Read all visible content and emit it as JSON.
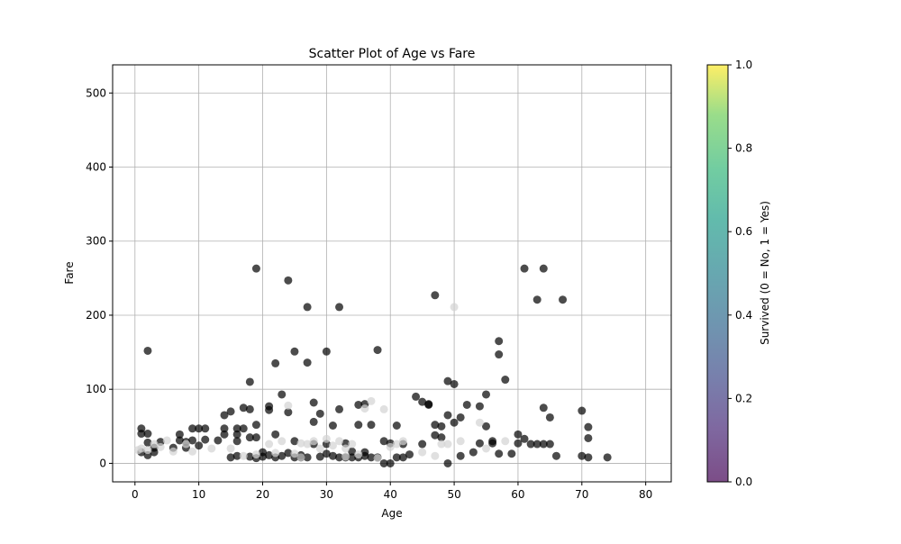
{
  "chart_data": {
    "type": "scatter",
    "title": "Scatter Plot of Age vs Fare",
    "xlabel": "Age",
    "ylabel": "Fare",
    "xlim": [
      -3.5,
      84
    ],
    "ylim": [
      -25,
      538
    ],
    "xticks": [
      0,
      10,
      20,
      30,
      40,
      50,
      60,
      70,
      80
    ],
    "yticks": [
      0,
      100,
      200,
      300,
      400,
      500
    ],
    "grid": true,
    "colorbar": {
      "label": "Survived (0 = No, 1 = Yes)",
      "range": [
        0,
        1
      ],
      "ticks": [
        "0.0",
        "0.2",
        "0.4",
        "0.6",
        "0.8",
        "1.0"
      ],
      "colormap": "viridis"
    },
    "series": [
      {
        "survived": 0,
        "color": "#000000",
        "points": [
          [
            1,
            47
          ],
          [
            1,
            40
          ],
          [
            1,
            15
          ],
          [
            2,
            152
          ],
          [
            2,
            40
          ],
          [
            2,
            28
          ],
          [
            2,
            11
          ],
          [
            3,
            21
          ],
          [
            3,
            15
          ],
          [
            4,
            29
          ],
          [
            6,
            21
          ],
          [
            7,
            31
          ],
          [
            7,
            39
          ],
          [
            8,
            21
          ],
          [
            8,
            29
          ],
          [
            9,
            47
          ],
          [
            9,
            31
          ],
          [
            10,
            47
          ],
          [
            10,
            24
          ],
          [
            11,
            47
          ],
          [
            11,
            32
          ],
          [
            13,
            31
          ],
          [
            14,
            65
          ],
          [
            14,
            47
          ],
          [
            14,
            39
          ],
          [
            15,
            70
          ],
          [
            15,
            8
          ],
          [
            16,
            47
          ],
          [
            16,
            39
          ],
          [
            16,
            30
          ],
          [
            16,
            10
          ],
          [
            17,
            75
          ],
          [
            17,
            47
          ],
          [
            18,
            110
          ],
          [
            18,
            73
          ],
          [
            18,
            35
          ],
          [
            18,
            9
          ],
          [
            19,
            263
          ],
          [
            19,
            52
          ],
          [
            19,
            35
          ],
          [
            19,
            7
          ],
          [
            20,
            15
          ],
          [
            20,
            9
          ],
          [
            21,
            77
          ],
          [
            21,
            72
          ],
          [
            21,
            11
          ],
          [
            22,
            135
          ],
          [
            22,
            39
          ],
          [
            22,
            8
          ],
          [
            23,
            93
          ],
          [
            23,
            10
          ],
          [
            24,
            247
          ],
          [
            24,
            69
          ],
          [
            24,
            14
          ],
          [
            25,
            151
          ],
          [
            25,
            30
          ],
          [
            25,
            8
          ],
          [
            26,
            8
          ],
          [
            27,
            211
          ],
          [
            27,
            136
          ],
          [
            27,
            8
          ],
          [
            28,
            82
          ],
          [
            28,
            56
          ],
          [
            28,
            26
          ],
          [
            29,
            67
          ],
          [
            29,
            9
          ],
          [
            30,
            151
          ],
          [
            30,
            26
          ],
          [
            31,
            51
          ],
          [
            31,
            10
          ],
          [
            32,
            211
          ],
          [
            32,
            73
          ],
          [
            32,
            8
          ],
          [
            33,
            27
          ],
          [
            33,
            8
          ],
          [
            34,
            16
          ],
          [
            35,
            79
          ],
          [
            35,
            52
          ],
          [
            35,
            8
          ],
          [
            36,
            80
          ],
          [
            36,
            15
          ],
          [
            37,
            52
          ],
          [
            37,
            8
          ],
          [
            38,
            153
          ],
          [
            38,
            8
          ],
          [
            39,
            30
          ],
          [
            39,
            0
          ],
          [
            40,
            0
          ],
          [
            40,
            27
          ],
          [
            41,
            51
          ],
          [
            41,
            8
          ],
          [
            42,
            26
          ],
          [
            43,
            12
          ],
          [
            44,
            90
          ],
          [
            45,
            83
          ],
          [
            46,
            80
          ],
          [
            46,
            79
          ],
          [
            47,
            227
          ],
          [
            47,
            52
          ],
          [
            47,
            38
          ],
          [
            48,
            50
          ],
          [
            49,
            111
          ],
          [
            49,
            65
          ],
          [
            49,
            0
          ],
          [
            50,
            107
          ],
          [
            50,
            55
          ],
          [
            51,
            62
          ],
          [
            51,
            10
          ],
          [
            52,
            79
          ],
          [
            54,
            77
          ],
          [
            54,
            27
          ],
          [
            55,
            93
          ],
          [
            55,
            50
          ],
          [
            56,
            30
          ],
          [
            57,
            165
          ],
          [
            57,
            147
          ],
          [
            57,
            13
          ],
          [
            58,
            113
          ],
          [
            59,
            13
          ],
          [
            60,
            39
          ],
          [
            61,
            263
          ],
          [
            61,
            33
          ],
          [
            62,
            26
          ],
          [
            63,
            221
          ],
          [
            63,
            26
          ],
          [
            64,
            263
          ],
          [
            64,
            75
          ],
          [
            64,
            26
          ],
          [
            65,
            62
          ],
          [
            65,
            26
          ],
          [
            66,
            10
          ],
          [
            67,
            221
          ],
          [
            70,
            71
          ],
          [
            70,
            10
          ],
          [
            71,
            49
          ],
          [
            71,
            34
          ],
          [
            71,
            8
          ],
          [
            74,
            8
          ],
          [
            26,
            11
          ],
          [
            30,
            13
          ],
          [
            34,
            8
          ],
          [
            36,
            10
          ],
          [
            42,
            8
          ],
          [
            45,
            26
          ],
          [
            48,
            35
          ],
          [
            53,
            15
          ],
          [
            56,
            27
          ],
          [
            60,
            27
          ]
        ]
      },
      {
        "survived": 1,
        "color": "#d3d3d3",
        "points": [
          [
            0.5,
            18
          ],
          [
            1,
            20
          ],
          [
            2,
            18
          ],
          [
            3,
            26
          ],
          [
            4,
            22
          ],
          [
            5,
            31
          ],
          [
            6,
            16
          ],
          [
            8,
            26
          ],
          [
            9,
            16
          ],
          [
            12,
            20
          ],
          [
            15,
            20
          ],
          [
            17,
            10
          ],
          [
            19,
            12
          ],
          [
            21,
            26
          ],
          [
            22,
            14
          ],
          [
            23,
            30
          ],
          [
            24,
            78
          ],
          [
            25,
            13
          ],
          [
            26,
            27
          ],
          [
            27,
            26
          ],
          [
            28,
            30
          ],
          [
            29,
            20
          ],
          [
            30,
            33
          ],
          [
            31,
            24
          ],
          [
            32,
            30
          ],
          [
            33,
            20
          ],
          [
            34,
            26
          ],
          [
            35,
            12
          ],
          [
            36,
            74
          ],
          [
            37,
            84
          ],
          [
            38,
            7
          ],
          [
            39,
            73
          ],
          [
            40,
            22
          ],
          [
            42,
            30
          ],
          [
            45,
            15
          ],
          [
            47,
            10
          ],
          [
            48,
            26
          ],
          [
            50,
            211
          ],
          [
            51,
            30
          ],
          [
            54,
            55
          ],
          [
            55,
            20
          ],
          [
            58,
            30
          ],
          [
            26,
            8
          ],
          [
            33,
            9
          ],
          [
            41,
            26
          ],
          [
            49,
            26
          ]
        ]
      }
    ]
  }
}
